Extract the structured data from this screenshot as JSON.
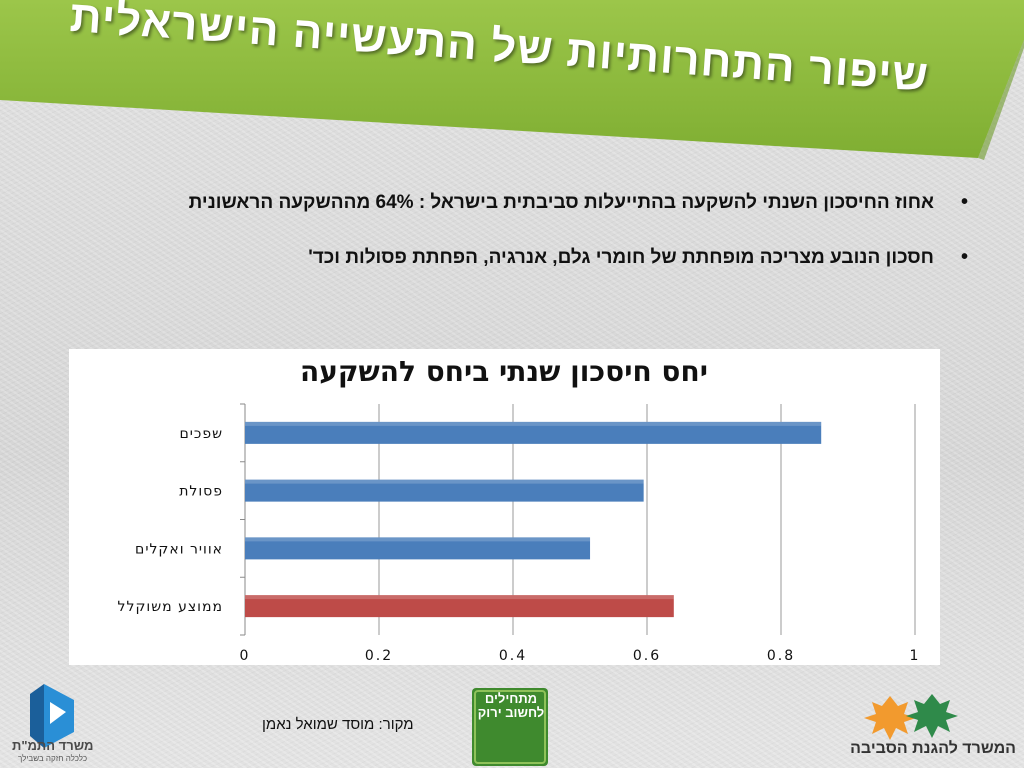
{
  "slide": {
    "title_line1": "שיפור התחרותיות של התעשייה הישראלית",
    "title_line2": "",
    "colors": {
      "banner": "#8cb63c",
      "bar_blue": "#4a7ebb",
      "bar_red": "#be4b48"
    }
  },
  "bullets": [
    {
      "text": "אחוז החיסכון השנתי להשקעה בהתייעלות סביבתית בישראל : 64% מההשקעה הראשונית"
    },
    {
      "text": "חסכון הנובע מצריכה מופחתת של חומרי גלם, אנרגיה, הפחתת פסולות וכד'"
    }
  ],
  "chart_data": {
    "type": "bar",
    "orientation": "horizontal",
    "title": "יחס חיסכון שנתי ביחס להשקעה",
    "categories": [
      "שפכים",
      "פסולת",
      "אוויר ואקלים",
      "ממוצע משוקלל"
    ],
    "values": [
      0.86,
      0.595,
      0.515,
      0.64
    ],
    "colors": [
      "#4a7ebb",
      "#4a7ebb",
      "#4a7ebb",
      "#be4b48"
    ],
    "xlim": [
      0,
      1
    ],
    "x_ticks": [
      "0",
      "0.2",
      "0.4",
      "0.6",
      "0.8",
      "1"
    ],
    "grid": true,
    "legend": "none"
  },
  "footer": {
    "source": "מקור: מוסד שמואל נאמן",
    "logo_left_name": "משרד התמ\"ת",
    "logo_left_sub": "כלכלה חזקה בשבילך",
    "logo_mid_text": "מתחילים לחשוב ירוק",
    "logo_right_name": "המשרד להגנת הסביבה",
    "icons": [
      "tmt-logo-icon",
      "green-thinking-logo-icon",
      "environment-ministry-leaves-icon"
    ]
  }
}
